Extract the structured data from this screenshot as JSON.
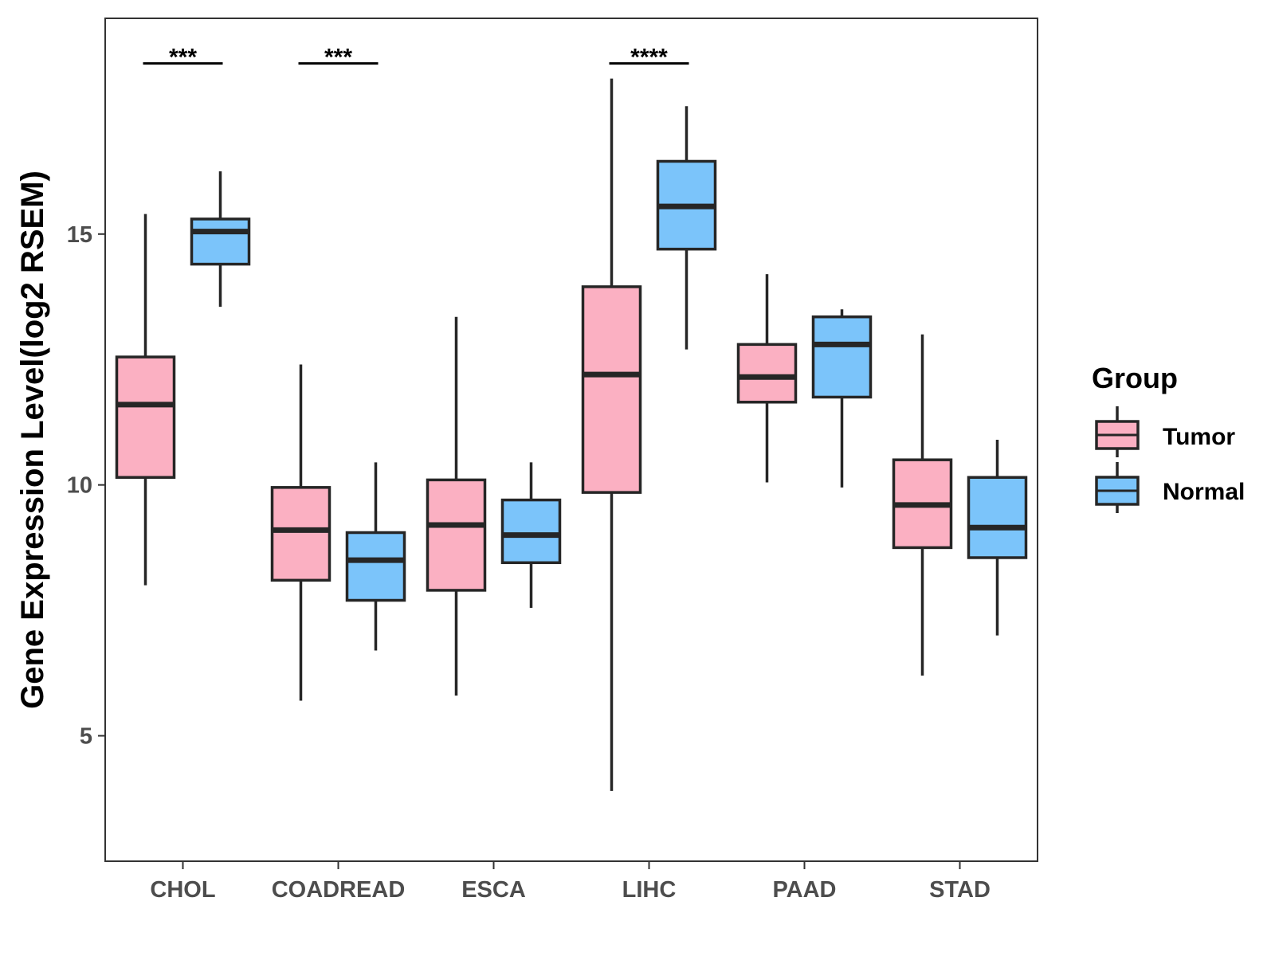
{
  "chart_data": {
    "type": "boxplot",
    "title": "",
    "xlabel": "",
    "ylabel": "Gene Expression Level(log2 RSEM)",
    "ylim": [
      2.5,
      19.3
    ],
    "yticks": [
      5,
      10,
      15
    ],
    "grid": false,
    "categories": [
      "CHOL",
      "COADREAD",
      "ESCA",
      "LIHC",
      "PAAD",
      "STAD"
    ],
    "legend": {
      "title": "Group",
      "position": "right"
    },
    "series": [
      {
        "name": "Tumor",
        "color": "#FBB0C2",
        "boxes": [
          {
            "min": 8.0,
            "q1": 10.15,
            "median": 11.6,
            "q3": 12.55,
            "max": 15.4
          },
          {
            "min": 5.7,
            "q1": 8.1,
            "median": 9.1,
            "q3": 9.95,
            "max": 12.4
          },
          {
            "min": 5.8,
            "q1": 7.9,
            "median": 9.2,
            "q3": 10.1,
            "max": 13.35
          },
          {
            "min": 3.9,
            "q1": 9.85,
            "median": 12.2,
            "q3": 13.95,
            "max": 18.1
          },
          {
            "min": 10.05,
            "q1": 11.65,
            "median": 12.15,
            "q3": 12.8,
            "max": 14.2
          },
          {
            "min": 6.2,
            "q1": 8.75,
            "median": 9.6,
            "q3": 10.5,
            "max": 13.0
          }
        ]
      },
      {
        "name": "Normal",
        "color": "#7BC4FA",
        "boxes": [
          {
            "min": 13.55,
            "q1": 14.4,
            "median": 15.05,
            "q3": 15.3,
            "max": 16.25
          },
          {
            "min": 6.7,
            "q1": 7.7,
            "median": 8.5,
            "q3": 9.05,
            "max": 10.45
          },
          {
            "min": 7.55,
            "q1": 8.45,
            "median": 9.0,
            "q3": 9.7,
            "max": 10.45
          },
          {
            "min": 12.7,
            "q1": 14.7,
            "median": 15.55,
            "q3": 16.45,
            "max": 17.55
          },
          {
            "min": 9.95,
            "q1": 11.75,
            "median": 12.8,
            "q3": 13.35,
            "max": 13.5
          },
          {
            "min": 7.0,
            "q1": 8.55,
            "median": 9.15,
            "q3": 10.15,
            "max": 10.9
          }
        ]
      }
    ],
    "annotations": [
      {
        "category": "CHOL",
        "label": "***",
        "y": 18.4
      },
      {
        "category": "COADREAD",
        "label": "***",
        "y": 18.4
      },
      {
        "category": "LIHC",
        "label": "****",
        "y": 18.4
      }
    ]
  }
}
